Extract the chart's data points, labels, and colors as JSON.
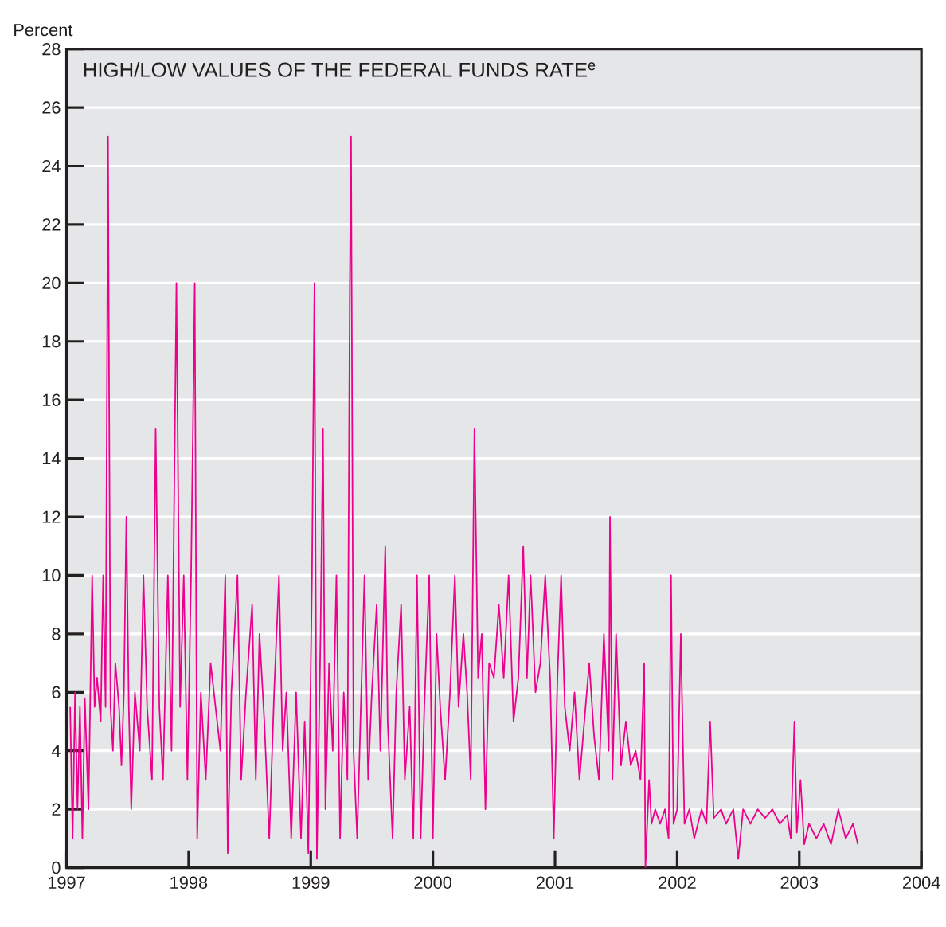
{
  "chart_data": {
    "type": "line",
    "title": "HIGH/LOW VALUES OF THE FEDERAL FUNDS RATE$^{e}$",
    "ylabel": "Percent",
    "x": [
      1997.03,
      1997.05,
      1997.07,
      1997.09,
      1997.11,
      1997.13,
      1997.15,
      1997.18,
      1997.21,
      1997.23,
      1997.25,
      1997.28,
      1997.3,
      1997.32,
      1997.34,
      1997.36,
      1997.38,
      1997.4,
      1997.43,
      1997.45,
      1997.47,
      1997.49,
      1997.51,
      1997.53,
      1997.56,
      1997.6,
      1997.63,
      1997.66,
      1997.7,
      1997.73,
      1997.76,
      1997.79,
      1997.83,
      1997.86,
      1997.9,
      1997.93,
      1997.96,
      1997.99,
      1998.02,
      1998.05,
      1998.07,
      1998.1,
      1998.14,
      1998.18,
      1998.22,
      1998.26,
      1998.3,
      1998.32,
      1998.35,
      1998.4,
      1998.43,
      1998.47,
      1998.52,
      1998.55,
      1998.58,
      1998.62,
      1998.66,
      1998.7,
      1998.74,
      1998.77,
      1998.8,
      1998.84,
      1998.88,
      1998.92,
      1998.95,
      1998.98,
      1999.01,
      1999.03,
      1999.05,
      1999.08,
      1999.1,
      1999.12,
      1999.15,
      1999.18,
      1999.21,
      1999.24,
      1999.27,
      1999.3,
      1999.32,
      1999.33,
      1999.35,
      1999.38,
      1999.41,
      1999.44,
      1999.47,
      1999.5,
      1999.54,
      1999.57,
      1999.61,
      1999.63,
      1999.67,
      1999.7,
      1999.74,
      1999.77,
      1999.81,
      1999.84,
      1999.87,
      1999.9,
      1999.93,
      1999.97,
      2000.0,
      2000.03,
      2000.06,
      2000.1,
      2000.14,
      2000.18,
      2000.21,
      2000.25,
      2000.28,
      2000.31,
      2000.34,
      2000.37,
      2000.4,
      2000.43,
      2000.46,
      2000.5,
      2000.54,
      2000.58,
      2000.62,
      2000.66,
      2000.7,
      2000.74,
      2000.77,
      2000.8,
      2000.84,
      2000.88,
      2000.92,
      2000.96,
      2000.99,
      2001.02,
      2001.05,
      2001.08,
      2001.12,
      2001.16,
      2001.2,
      2001.24,
      2001.28,
      2001.32,
      2001.36,
      2001.4,
      2001.44,
      2001.45,
      2001.47,
      2001.5,
      2001.54,
      2001.58,
      2001.62,
      2001.66,
      2001.7,
      2001.73,
      2001.74,
      2001.77,
      2001.79,
      2001.82,
      2001.86,
      2001.9,
      2001.93,
      2001.95,
      2001.97,
      2002.0,
      2002.03,
      2002.06,
      2002.1,
      2002.14,
      2002.2,
      2002.24,
      2002.27,
      2002.3,
      2002.36,
      2002.4,
      2002.46,
      2002.5,
      2002.54,
      2002.6,
      2002.66,
      2002.72,
      2002.78,
      2002.84,
      2002.9,
      2002.93,
      2002.96,
      2002.98,
      2003.01,
      2003.04,
      2003.08,
      2003.14,
      2003.2,
      2003.26,
      2003.32,
      2003.38,
      2003.44,
      2003.48
    ],
    "series": [
      {
        "color": "#ec008c",
        "values": [
          5.5,
          1,
          6,
          2,
          5.5,
          1,
          5.8,
          2,
          10,
          5.5,
          6.5,
          5,
          10,
          5.5,
          25,
          5.5,
          4,
          7,
          5.5,
          3.5,
          6,
          12,
          5.5,
          2,
          6,
          4,
          10,
          5.5,
          3,
          15,
          5.5,
          3,
          10,
          4,
          20,
          5.5,
          10,
          3,
          10,
          20,
          1,
          6,
          3,
          7,
          5.5,
          4,
          10,
          0.5,
          6,
          10,
          3,
          6,
          9,
          3,
          8,
          5,
          1,
          6,
          10,
          4,
          6,
          1,
          6,
          1,
          5,
          0.5,
          10,
          20,
          0.3,
          8,
          15,
          2,
          7,
          4,
          10,
          1,
          6,
          3,
          20,
          25,
          4,
          1,
          5.5,
          10,
          3,
          6,
          9,
          4,
          11,
          5,
          1,
          6,
          9,
          3,
          5.5,
          1,
          10,
          1,
          5.5,
          10,
          1,
          8,
          5.5,
          3,
          6,
          10,
          5.5,
          8,
          6,
          3,
          15,
          6.5,
          8,
          2,
          7,
          6.5,
          9,
          6.5,
          10,
          5,
          6.5,
          11,
          6.5,
          10,
          6,
          7,
          10,
          6.5,
          1,
          6.5,
          10,
          5.5,
          4,
          6,
          3,
          5,
          7,
          4.5,
          3,
          8,
          4,
          12,
          3,
          8,
          3.5,
          5,
          3.5,
          4,
          3,
          7,
          0,
          3,
          1.5,
          2,
          1.5,
          2,
          1,
          10,
          1.5,
          2,
          8,
          1.5,
          2,
          1,
          2,
          1.5,
          5,
          1.7,
          2,
          1.5,
          2,
          0.3,
          2,
          1.5,
          2,
          1.7,
          2,
          1.5,
          1.8,
          1,
          5,
          1.2,
          3,
          0.8,
          1.5,
          1,
          1.5,
          0.8,
          2,
          1,
          1.5,
          0.8
        ]
      }
    ],
    "xlim": [
      1997,
      2004
    ],
    "ylim": [
      0,
      28
    ],
    "xticks": [
      1997,
      1998,
      1999,
      2000,
      2001,
      2002,
      2003,
      2004
    ],
    "yticks": [
      0,
      2,
      4,
      6,
      8,
      10,
      12,
      14,
      16,
      18,
      20,
      22,
      24,
      26,
      28
    ],
    "grid": "y",
    "marker": "none",
    "line_style": "solid"
  }
}
